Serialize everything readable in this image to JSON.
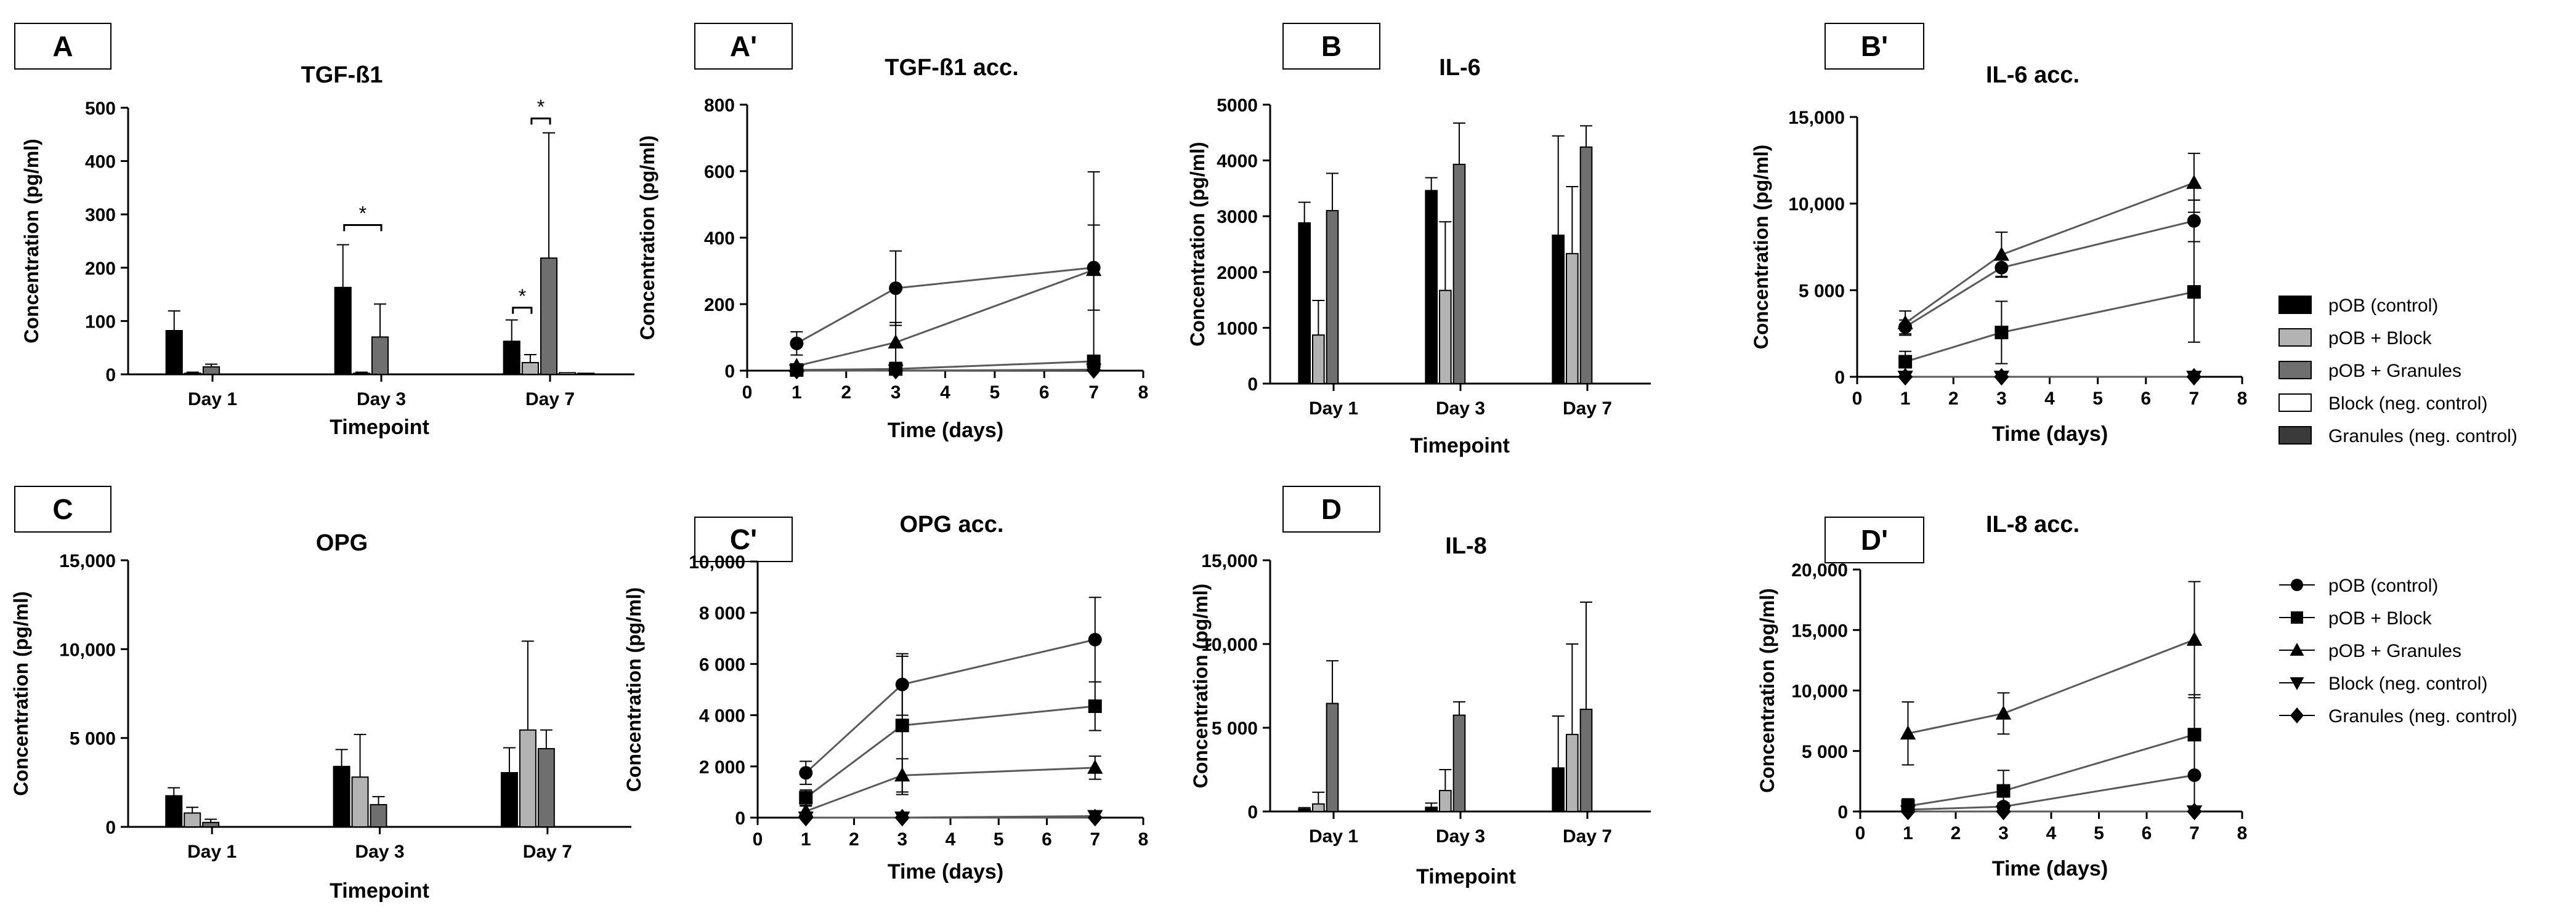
{
  "colors": {
    "pOB (control)": "#000000",
    "pOB + Block": "#b3b3b3",
    "pOB + Granules": "#6f6f6f",
    "Block (neg. control)": "#ffffff",
    "Granules (neg. control)": "#3a3a3a",
    "line": "#5a5a5a"
  },
  "legends": [
    {
      "kind": "bar",
      "items": [
        {
          "label": "pOB (control)",
          "style": "solid-black"
        },
        {
          "label": "pOB + Block",
          "style": "light-gray"
        },
        {
          "label": "pOB + Granules",
          "style": "mid-gray"
        },
        {
          "label": "Block (neg. control)",
          "style": "white-outline"
        },
        {
          "label": "Granules (neg. control)",
          "style": "dark-gray"
        }
      ]
    },
    {
      "kind": "line",
      "items": [
        {
          "label": "pOB (control)",
          "marker": "circle"
        },
        {
          "label": "pOB + Block",
          "marker": "square"
        },
        {
          "label": "pOB + Granules",
          "marker": "triangle-up"
        },
        {
          "label": "Block (neg. control)",
          "marker": "triangle-down"
        },
        {
          "label": "Granules (neg. control)",
          "marker": "diamond"
        }
      ]
    }
  ],
  "chart_data": [
    {
      "panel": "A",
      "type": "bar",
      "title": "TGF-ß1",
      "xlabel": "Timepoint",
      "ylabel": "Concentration (pg/ml)",
      "ylim": [
        0,
        500
      ],
      "yticks": [
        "0",
        "100",
        "200",
        "300",
        "400",
        "500"
      ],
      "categories": [
        "Day 1",
        "Day 3",
        "Day 7"
      ],
      "series": [
        {
          "name": "pOB (control)",
          "values": [
            82,
            163,
            62
          ],
          "errors": [
            37,
            80,
            40
          ]
        },
        {
          "name": "pOB + Block",
          "values": [
            2,
            2,
            22
          ],
          "errors": [
            2,
            2,
            15
          ]
        },
        {
          "name": "pOB + Granules",
          "values": [
            14,
            70,
            218
          ],
          "errors": [
            5,
            62,
            235
          ]
        },
        {
          "name": "Block (neg. control)",
          "values": [
            0,
            0,
            3
          ],
          "errors": [
            0,
            0,
            0
          ]
        },
        {
          "name": "Granules (neg. control)",
          "values": [
            0,
            0,
            2
          ],
          "errors": [
            0,
            0,
            0
          ]
        }
      ],
      "annotations": [
        {
          "text": "*",
          "cat": 1,
          "from": 0,
          "to": 2,
          "y": 280
        },
        {
          "text": "*",
          "cat": 2,
          "from": 0,
          "to": 1,
          "y": 125
        },
        {
          "text": "*",
          "cat": 2,
          "from": 1,
          "to": 2,
          "y": 480
        }
      ]
    },
    {
      "panel": "A'",
      "type": "line",
      "title": "TGF-ß1 acc.",
      "xlabel": "Time (days)",
      "ylabel": "Concentration (pg/ml)",
      "xlim": [
        0,
        8
      ],
      "ylim": [
        0,
        800
      ],
      "xticks": [
        "0",
        "1",
        "2",
        "3",
        "4",
        "5",
        "6",
        "7",
        "8"
      ],
      "yticks": [
        "0",
        "200",
        "400",
        "600",
        "800"
      ],
      "x": [
        1,
        3,
        7
      ],
      "series": [
        {
          "name": "pOB (control)",
          "values": [
            82,
            248,
            310
          ],
          "errors": [
            35,
            112,
            128
          ]
        },
        {
          "name": "pOB + Block",
          "values": [
            2,
            5,
            28
          ],
          "errors": [
            2,
            4,
            18
          ]
        },
        {
          "name": "pOB + Granules",
          "values": [
            14,
            85,
            303
          ],
          "errors": [
            6,
            60,
            295
          ]
        },
        {
          "name": "Block (neg. control)",
          "values": [
            0,
            0,
            3
          ],
          "errors": [
            0,
            0,
            0
          ]
        },
        {
          "name": "Granules (neg. control)",
          "values": [
            0,
            0,
            2
          ],
          "errors": [
            0,
            0,
            0
          ]
        }
      ]
    },
    {
      "panel": "B",
      "type": "bar",
      "title": "IL-6",
      "xlabel": "Timepoint",
      "ylabel": "Concentration  (pg/ml)",
      "ylim": [
        0,
        5000
      ],
      "yticks": [
        "0",
        "1000",
        "2000",
        "3000",
        "4000",
        "5000"
      ],
      "categories": [
        "Day 1",
        "Day 3",
        "Day 7"
      ],
      "series": [
        {
          "name": "pOB (control)",
          "values": [
            2880,
            3460,
            2660
          ],
          "errors": [
            370,
            230,
            1780
          ]
        },
        {
          "name": "pOB + Block",
          "values": [
            870,
            1670,
            2330
          ],
          "errors": [
            620,
            1230,
            1200
          ]
        },
        {
          "name": "pOB + Granules",
          "values": [
            3100,
            3930,
            4240
          ],
          "errors": [
            670,
            740,
            380
          ]
        },
        {
          "name": "Block (neg. control)",
          "values": [
            0,
            0,
            0
          ],
          "errors": [
            0,
            0,
            0
          ]
        },
        {
          "name": "Granules (neg. control)",
          "values": [
            0,
            0,
            0
          ],
          "errors": [
            0,
            0,
            0
          ]
        }
      ]
    },
    {
      "panel": "B'",
      "type": "line",
      "title": "IL-6 acc.",
      "xlabel": "Time (days)",
      "ylabel": "Concentration (pg/ml)",
      "xlim": [
        0,
        8
      ],
      "ylim": [
        0,
        15000
      ],
      "xticks": [
        "0",
        "1",
        "2",
        "3",
        "4",
        "5",
        "6",
        "7",
        "8"
      ],
      "yticks": [
        "0",
        "5 000",
        "10,000",
        "15,000"
      ],
      "x": [
        1,
        3,
        7
      ],
      "series": [
        {
          "name": "pOB (control)",
          "values": [
            2880,
            6300,
            9000
          ],
          "errors": [
            400,
            500,
            1200
          ]
        },
        {
          "name": "pOB + Block",
          "values": [
            870,
            2560,
            4900
          ],
          "errors": [
            600,
            1800,
            2900
          ]
        },
        {
          "name": "pOB + Granules",
          "values": [
            3100,
            7050,
            11200
          ],
          "errors": [
            700,
            1300,
            1700
          ]
        },
        {
          "name": "Block (neg. control)",
          "values": [
            0,
            0,
            0
          ],
          "errors": [
            0,
            0,
            0
          ]
        },
        {
          "name": "Granules (neg. control)",
          "values": [
            0,
            0,
            0
          ],
          "errors": [
            0,
            0,
            0
          ]
        }
      ]
    },
    {
      "panel": "C",
      "type": "bar",
      "title": "OPG",
      "xlabel": "Timepoint",
      "ylabel": "Concentration (pg/ml)",
      "ylim": [
        0,
        15000
      ],
      "yticks": [
        "0",
        "5 000",
        "10,000",
        "15,000"
      ],
      "categories": [
        "Day 1",
        "Day 3",
        "Day 7"
      ],
      "series": [
        {
          "name": "pOB (control)",
          "values": [
            1750,
            3400,
            3050
          ],
          "errors": [
            450,
            950,
            1400
          ]
        },
        {
          "name": "pOB + Block",
          "values": [
            780,
            2800,
            5450
          ],
          "errors": [
            320,
            2400,
            5000
          ]
        },
        {
          "name": "pOB + Granules",
          "values": [
            250,
            1250,
            4400
          ],
          "errors": [
            180,
            450,
            1050
          ]
        },
        {
          "name": "Block (neg. control)",
          "values": [
            0,
            0,
            0
          ],
          "errors": [
            0,
            0,
            0
          ]
        },
        {
          "name": "Granules (neg. control)",
          "values": [
            0,
            0,
            0
          ],
          "errors": [
            0,
            0,
            0
          ]
        }
      ]
    },
    {
      "panel": "C'",
      "type": "line",
      "title": "OPG acc.",
      "xlabel": "Time (days)",
      "ylabel": "Concentration (pg/ml)",
      "xlim": [
        0,
        8
      ],
      "ylim": [
        0,
        10000
      ],
      "xticks": [
        "0",
        "1",
        "2",
        "3",
        "4",
        "5",
        "6",
        "7",
        "8"
      ],
      "yticks": [
        "0",
        "2 000",
        "4 000",
        "6 000",
        "8 000",
        "10,000"
      ],
      "x": [
        1,
        3,
        7
      ],
      "series": [
        {
          "name": "pOB (control)",
          "values": [
            1750,
            5200,
            6950
          ],
          "errors": [
            450,
            1200,
            1650
          ]
        },
        {
          "name": "pOB + Block",
          "values": [
            780,
            3600,
            4350
          ],
          "errors": [
            300,
            2700,
            950
          ]
        },
        {
          "name": "pOB + Granules",
          "values": [
            250,
            1650,
            1950
          ],
          "errors": [
            200,
            650,
            450
          ]
        },
        {
          "name": "Block (neg. control)",
          "values": [
            0,
            0,
            60
          ],
          "errors": [
            0,
            0,
            0
          ]
        },
        {
          "name": "Granules (neg. control)",
          "values": [
            0,
            0,
            0
          ],
          "errors": [
            0,
            0,
            0
          ]
        }
      ]
    },
    {
      "panel": "D",
      "type": "bar",
      "title": "IL-8",
      "xlabel": "Timepoint",
      "ylabel": "Concentration (pg/ml)",
      "ylim": [
        0,
        15000
      ],
      "yticks": [
        "0",
        "5 000",
        "10,000",
        "15,000"
      ],
      "categories": [
        "Day 1",
        "Day 3",
        "Day 7"
      ],
      "series": [
        {
          "name": "pOB (control)",
          "values": [
            150,
            250,
            2600
          ],
          "errors": [
            80,
            250,
            3100
          ]
        },
        {
          "name": "pOB + Block",
          "values": [
            450,
            1250,
            4600
          ],
          "errors": [
            700,
            1250,
            5400
          ]
        },
        {
          "name": "pOB + Granules",
          "values": [
            6450,
            5750,
            6100
          ],
          "errors": [
            2550,
            800,
            6400
          ]
        },
        {
          "name": "Block (neg. control)",
          "values": [
            0,
            0,
            0
          ],
          "errors": [
            0,
            0,
            0
          ]
        },
        {
          "name": "Granules (neg. control)",
          "values": [
            0,
            0,
            0
          ],
          "errors": [
            0,
            0,
            0
          ]
        }
      ]
    },
    {
      "panel": "D'",
      "type": "line",
      "title": "IL-8 acc.",
      "xlabel": "Time (days)",
      "ylabel": "Concentration (pg/ml)",
      "xlim": [
        0,
        8
      ],
      "ylim": [
        0,
        20000
      ],
      "xticks": [
        "0",
        "1",
        "2",
        "3",
        "4",
        "5",
        "6",
        "7",
        "8"
      ],
      "yticks": [
        "0",
        "5 000",
        "10,000",
        "15,000",
        "20,000"
      ],
      "x": [
        1,
        3,
        7
      ],
      "series": [
        {
          "name": "pOB (control)",
          "values": [
            150,
            400,
            3000
          ],
          "errors": [
            100,
            300,
            3000
          ]
        },
        {
          "name": "pOB + Block",
          "values": [
            450,
            1700,
            6350
          ],
          "errors": [
            600,
            1700,
            3300
          ]
        },
        {
          "name": "pOB + Granules",
          "values": [
            6450,
            8100,
            14200
          ],
          "errors": [
            2600,
            1700,
            4800
          ]
        },
        {
          "name": "Block (neg. control)",
          "values": [
            0,
            0,
            0
          ],
          "errors": [
            0,
            0,
            0
          ]
        },
        {
          "name": "Granules (neg. control)",
          "values": [
            0,
            0,
            0
          ],
          "errors": [
            0,
            0,
            0
          ]
        }
      ]
    }
  ]
}
